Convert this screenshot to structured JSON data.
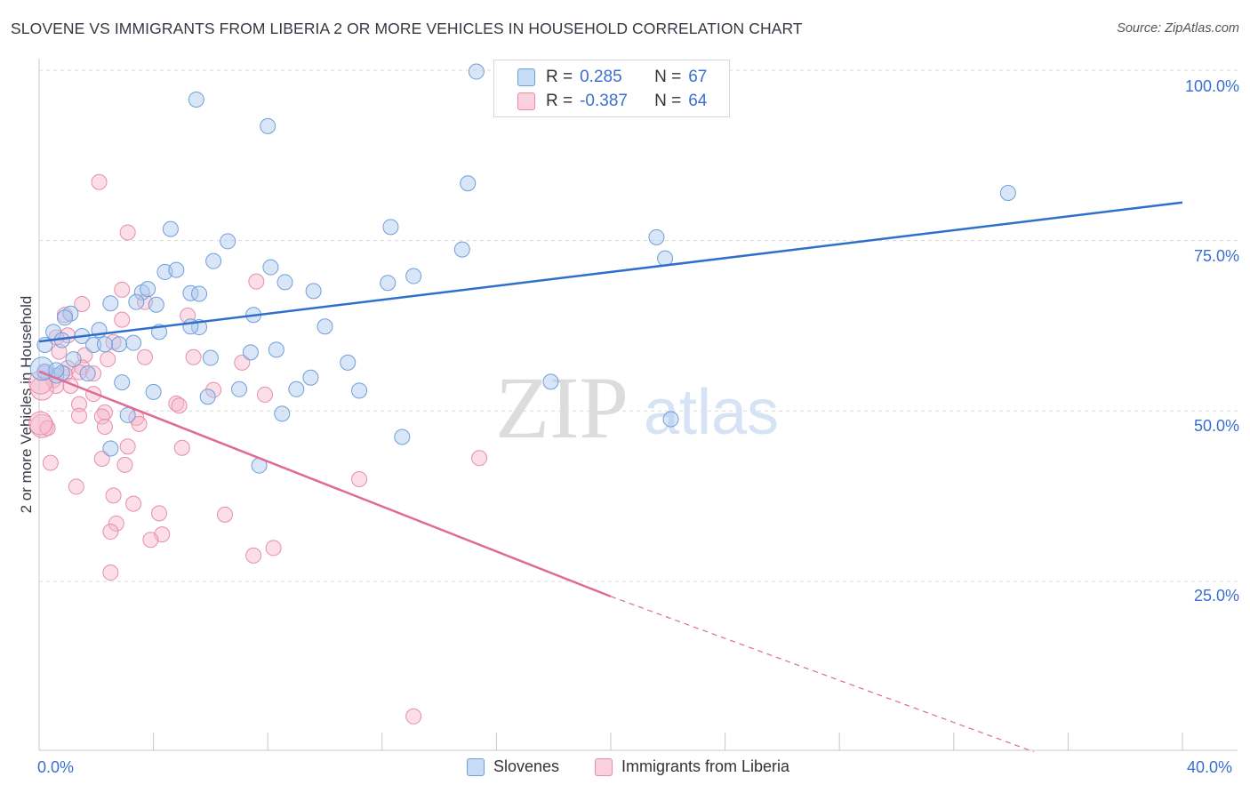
{
  "header": {
    "title": "SLOVENE VS IMMIGRANTS FROM LIBERIA 2 OR MORE VEHICLES IN HOUSEHOLD CORRELATION CHART",
    "source": "Source: ZipAtlas.com"
  },
  "watermark": {
    "zip": "ZIP",
    "atlas": "atlas"
  },
  "legend": {
    "rows": [
      {
        "r_label": "R =",
        "r_value": "0.285",
        "n_label": "N =",
        "n_value": "67"
      },
      {
        "r_label": "R =",
        "r_value": "-0.387",
        "n_label": "N =",
        "n_value": "64"
      }
    ]
  },
  "bottom_legend": {
    "series1": "Slovenes",
    "series2": "Immigrants from Liberia"
  },
  "axes": {
    "y_title": "2 or more Vehicles in Household",
    "y_ticks": [
      "100.0%",
      "75.0%",
      "50.0%",
      "25.0%"
    ],
    "x_tick_left": "0.0%",
    "x_tick_right": "40.0%"
  },
  "colors": {
    "blue_fill": "#aac8f0",
    "blue_stroke": "#6f9fd8",
    "blue_line": "#2f6fcc",
    "pink_fill": "#f6b6c9",
    "pink_stroke": "#e58fad",
    "pink_line": "#e06a96",
    "accent_text": "#3a6fd0"
  },
  "chart_data": {
    "type": "scatter",
    "xlabel": "",
    "ylabel": "2 or more Vehicles in Household",
    "xlim": [
      0,
      40
    ],
    "ylim": [
      0,
      102
    ],
    "y_ticks": [
      25,
      50,
      75,
      100
    ],
    "grid": "horizontal dashed",
    "legend_position": "top-center",
    "series": [
      {
        "name": "Slovenes",
        "r": 0.285,
        "n": 67,
        "trend": {
          "x0": 0,
          "y0": 60.2,
          "x1": 40,
          "y1": 80.6,
          "dashed_from_x": null
        },
        "points": [
          [
            15.3,
            99.8
          ],
          [
            5.5,
            95.7
          ],
          [
            8.0,
            91.8
          ],
          [
            15.0,
            83.4
          ],
          [
            33.9,
            82.0
          ],
          [
            12.3,
            77.0
          ],
          [
            4.6,
            76.7
          ],
          [
            6.6,
            74.9
          ],
          [
            14.8,
            73.7
          ],
          [
            21.6,
            75.5
          ],
          [
            21.9,
            72.4
          ],
          [
            6.1,
            72.0
          ],
          [
            4.4,
            70.4
          ],
          [
            4.8,
            70.7
          ],
          [
            8.1,
            71.1
          ],
          [
            13.1,
            69.8
          ],
          [
            12.2,
            68.8
          ],
          [
            8.6,
            68.9
          ],
          [
            3.6,
            67.4
          ],
          [
            3.8,
            67.9
          ],
          [
            5.3,
            67.3
          ],
          [
            5.6,
            67.2
          ],
          [
            9.6,
            67.6
          ],
          [
            2.5,
            65.8
          ],
          [
            3.4,
            66.0
          ],
          [
            4.1,
            65.6
          ],
          [
            1.1,
            64.3
          ],
          [
            0.9,
            63.7
          ],
          [
            7.5,
            64.1
          ],
          [
            10.0,
            62.4
          ],
          [
            4.2,
            61.6
          ],
          [
            5.6,
            62.3
          ],
          [
            5.3,
            62.4
          ],
          [
            0.5,
            61.6
          ],
          [
            2.1,
            61.9
          ],
          [
            1.5,
            61.0
          ],
          [
            0.8,
            60.4
          ],
          [
            3.3,
            60.0
          ],
          [
            1.9,
            59.7
          ],
          [
            2.8,
            59.8
          ],
          [
            0.2,
            59.7
          ],
          [
            2.3,
            59.8
          ],
          [
            8.3,
            59.0
          ],
          [
            7.4,
            58.6
          ],
          [
            6.0,
            57.8
          ],
          [
            1.2,
            57.6
          ],
          [
            10.8,
            57.1
          ],
          [
            1.7,
            55.5
          ],
          [
            0.6,
            55.2
          ],
          [
            0.8,
            55.6
          ],
          [
            0.2,
            55.8
          ],
          [
            9.5,
            54.9
          ],
          [
            17.9,
            54.3
          ],
          [
            2.9,
            54.2
          ],
          [
            7.0,
            53.2
          ],
          [
            11.2,
            53.0
          ],
          [
            9.0,
            53.2
          ],
          [
            4.0,
            52.8
          ],
          [
            5.9,
            52.1
          ],
          [
            22.1,
            48.8
          ],
          [
            8.5,
            49.6
          ],
          [
            3.1,
            49.4
          ],
          [
            12.7,
            46.2
          ],
          [
            2.5,
            44.5
          ],
          [
            7.7,
            42.0
          ],
          [
            0.1,
            56.2
          ],
          [
            0.6,
            56.0
          ]
        ]
      },
      {
        "name": "Immigrants from Liberia",
        "r": -0.387,
        "n": 64,
        "trend": {
          "x0": 0,
          "y0": 55.8,
          "x1": 20,
          "y1": 22.8,
          "dashed_from_x": 20,
          "dashed_x1": 34.8,
          "dashed_y1": 0
        },
        "points": [
          [
            2.1,
            83.6
          ],
          [
            3.1,
            76.2
          ],
          [
            7.6,
            69.0
          ],
          [
            2.9,
            67.8
          ],
          [
            3.7,
            66.0
          ],
          [
            1.5,
            65.7
          ],
          [
            5.2,
            64.0
          ],
          [
            0.9,
            64.1
          ],
          [
            2.9,
            63.4
          ],
          [
            1.0,
            61.1
          ],
          [
            0.6,
            60.8
          ],
          [
            2.6,
            60.1
          ],
          [
            0.7,
            58.7
          ],
          [
            1.6,
            58.2
          ],
          [
            3.7,
            57.9
          ],
          [
            5.4,
            57.9
          ],
          [
            2.4,
            57.6
          ],
          [
            7.1,
            57.1
          ],
          [
            1.0,
            56.3
          ],
          [
            1.5,
            56.4
          ],
          [
            1.4,
            55.7
          ],
          [
            0.9,
            55.4
          ],
          [
            0.2,
            55.6
          ],
          [
            1.9,
            55.5
          ],
          [
            0.5,
            54.5
          ],
          [
            0.6,
            53.7
          ],
          [
            1.1,
            53.7
          ],
          [
            0.1,
            53.3
          ],
          [
            6.1,
            53.1
          ],
          [
            7.9,
            52.4
          ],
          [
            1.9,
            52.5
          ],
          [
            1.4,
            51.0
          ],
          [
            4.8,
            51.1
          ],
          [
            4.9,
            50.8
          ],
          [
            2.3,
            49.8
          ],
          [
            1.4,
            49.3
          ],
          [
            2.2,
            49.2
          ],
          [
            3.4,
            49.0
          ],
          [
            3.5,
            48.1
          ],
          [
            0.1,
            47.8
          ],
          [
            2.3,
            47.7
          ],
          [
            0.3,
            47.5
          ],
          [
            3.1,
            44.8
          ],
          [
            5.0,
            44.6
          ],
          [
            15.4,
            43.1
          ],
          [
            2.2,
            43.0
          ],
          [
            0.4,
            42.4
          ],
          [
            3.0,
            42.1
          ],
          [
            11.2,
            40.0
          ],
          [
            1.3,
            38.9
          ],
          [
            2.6,
            37.6
          ],
          [
            3.3,
            36.4
          ],
          [
            4.2,
            35.0
          ],
          [
            6.5,
            34.8
          ],
          [
            2.7,
            33.5
          ],
          [
            2.5,
            32.3
          ],
          [
            4.3,
            31.9
          ],
          [
            3.9,
            31.1
          ],
          [
            8.2,
            29.9
          ],
          [
            7.5,
            28.8
          ],
          [
            2.5,
            26.3
          ],
          [
            13.1,
            5.2
          ],
          [
            0.05,
            48.2
          ],
          [
            0.05,
            54.2
          ]
        ]
      }
    ]
  }
}
